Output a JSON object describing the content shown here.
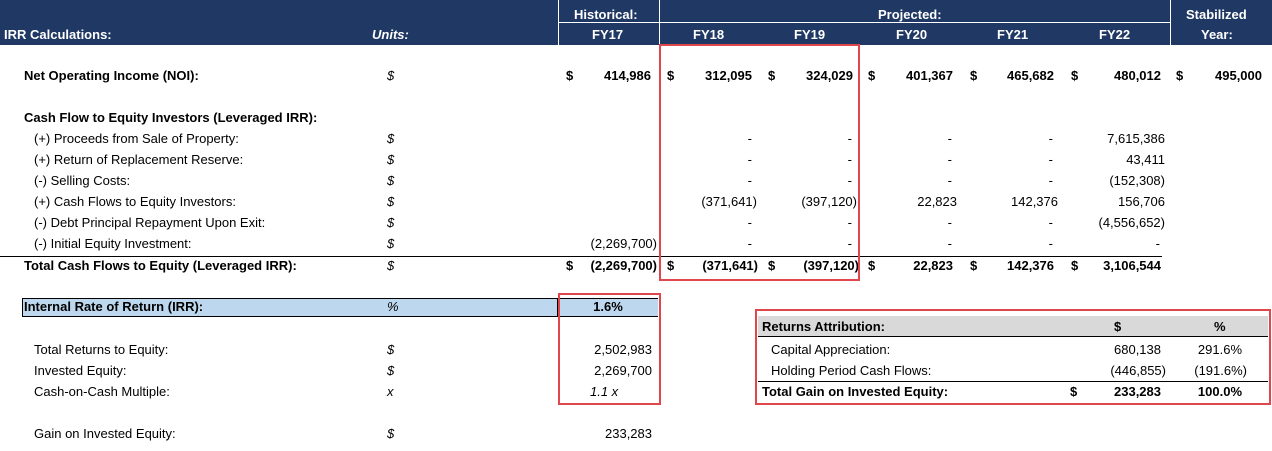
{
  "header": {
    "label": "IRR Calculations:",
    "units_label": "Units:",
    "historical_label": "Historical:",
    "projected_label": "Projected:",
    "stabilized_label": "Stabilized",
    "stabilized_year": "Year:",
    "years": [
      "FY17",
      "FY18",
      "FY19",
      "FY20",
      "FY21",
      "FY22"
    ]
  },
  "noi": {
    "label": "Net Operating Income (NOI):",
    "unit": "$",
    "values": [
      "414,986",
      "312,095",
      "324,029",
      "401,367",
      "465,682",
      "480,012"
    ],
    "stabilized": "495,000"
  },
  "cash_flow": {
    "section_label": "Cash Flow to Equity Investors (Leveraged IRR):",
    "rows": [
      {
        "label": "(+) Proceeds from Sale of Property:",
        "unit": "$",
        "values": [
          "",
          "-",
          "-",
          "-",
          "-",
          "7,615,386"
        ]
      },
      {
        "label": "(+) Return of Replacement Reserve:",
        "unit": "$",
        "values": [
          "",
          "-",
          "-",
          "-",
          "-",
          "43,411"
        ]
      },
      {
        "label": "(-) Selling Costs:",
        "unit": "$",
        "values": [
          "",
          "-",
          "-",
          "-",
          "-",
          "(152,308)"
        ]
      },
      {
        "label": "(+) Cash Flows to Equity Investors:",
        "unit": "$",
        "values": [
          "",
          "(371,641)",
          "(397,120)",
          "22,823",
          "142,376",
          "156,706"
        ]
      },
      {
        "label": "(-) Debt Principal Repayment Upon Exit:",
        "unit": "$",
        "values": [
          "",
          "-",
          "-",
          "-",
          "-",
          "(4,556,652)"
        ]
      },
      {
        "label": "(-) Initial Equity Investment:",
        "unit": "$",
        "values": [
          "(2,269,700)",
          "-",
          "-",
          "-",
          "-",
          "-"
        ]
      }
    ],
    "total_label": "Total Cash Flows to Equity (Leveraged IRR):",
    "total_unit": "$",
    "total_values": [
      "(2,269,700)",
      "(371,641)",
      "(397,120)",
      "22,823",
      "142,376",
      "3,106,544"
    ]
  },
  "irr": {
    "label": "Internal Rate of Return (IRR):",
    "unit": "%",
    "value": "1.6%"
  },
  "returns": [
    {
      "label": "Total Returns to Equity:",
      "unit": "$",
      "value": "2,502,983"
    },
    {
      "label": "Invested Equity:",
      "unit": "$",
      "value": "2,269,700"
    },
    {
      "label": "Cash-on-Cash Multiple:",
      "unit": "x",
      "value": "1.1 x"
    }
  ],
  "gain": {
    "label": "Gain on Invested Equity:",
    "unit": "$",
    "value": "233,283"
  },
  "attribution": {
    "title": "Returns Attribution:",
    "col_dollar": "$",
    "col_pct": "%",
    "rows": [
      {
        "label": "Capital Appreciation:",
        "value": "680,138",
        "pct": "291.6%"
      },
      {
        "label": "Holding Period Cash Flows:",
        "value": "(446,855)",
        "pct": "(191.6%)"
      }
    ],
    "total": {
      "label": "Total Gain on Invested Equity:",
      "currency": "$",
      "value": "233,283",
      "pct": "100.0%"
    }
  },
  "currency_symbol": "$"
}
